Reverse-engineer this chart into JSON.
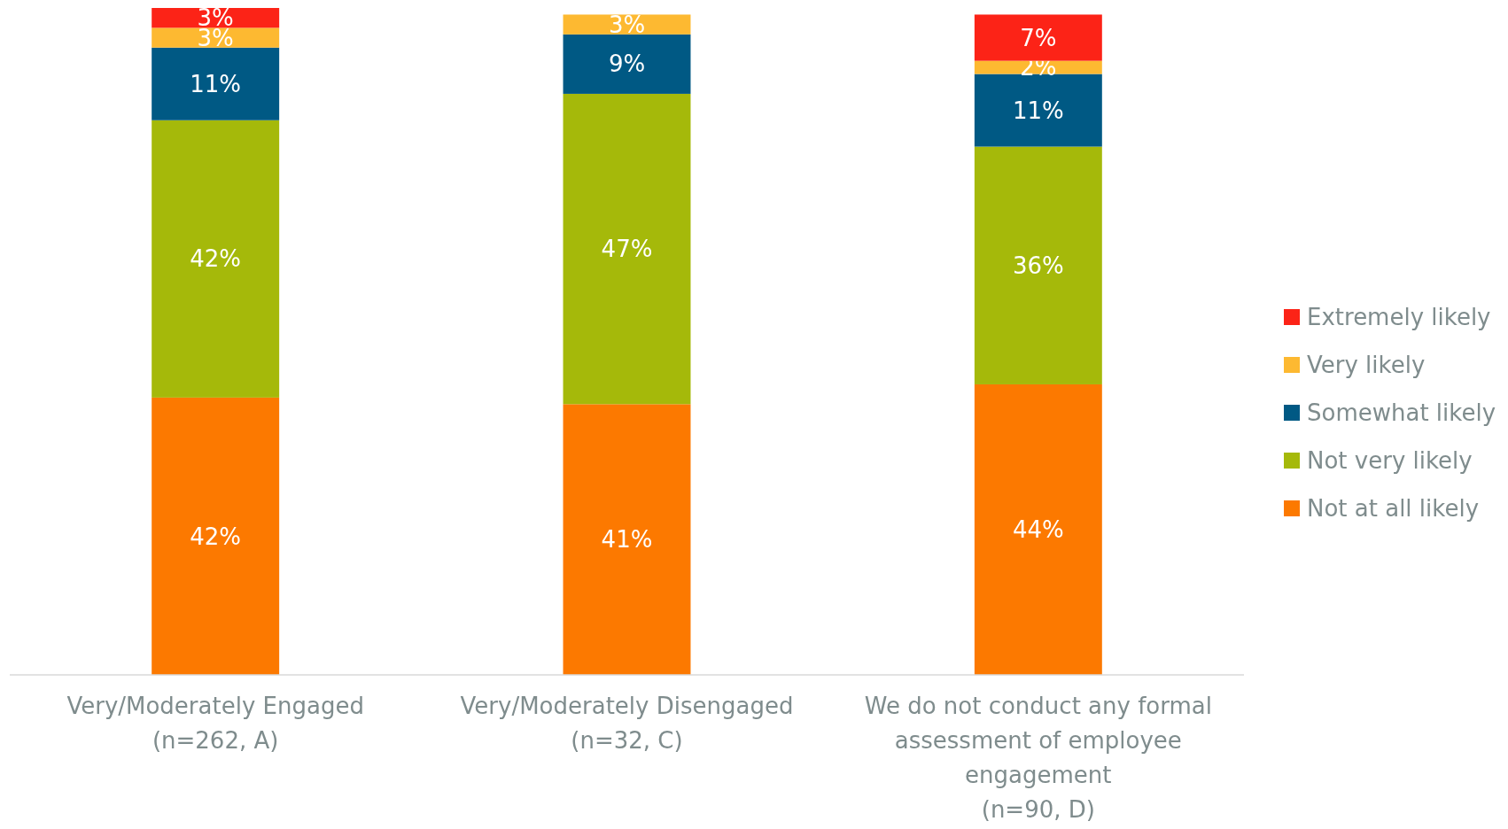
{
  "chart_data": {
    "type": "bar",
    "stacked": true,
    "legend": "right",
    "categories": [
      "Very/Moderately Engaged\n(n=262, A)",
      "Very/Moderately Disengaged\n(n=32, C)",
      "We do not conduct any formal\nassessment of employee\nengagement\n(n=90, D)"
    ],
    "series": [
      {
        "name": "Not at all likely",
        "color": "#fc7900",
        "values": [
          42,
          41,
          44
        ],
        "value_labels": [
          "42%",
          "41%",
          "44%"
        ]
      },
      {
        "name": "Not very likely",
        "color": "#a5b90a",
        "values": [
          42,
          47,
          36
        ],
        "value_labels": [
          "42%",
          "47%",
          "36%"
        ]
      },
      {
        "name": "Somewhat likely",
        "color": "#005984",
        "values": [
          11,
          9,
          11
        ],
        "value_labels": [
          "11%",
          "9%",
          "11%"
        ]
      },
      {
        "name": "Very likely",
        "color": "#fdb931",
        "values": [
          3,
          3,
          2
        ],
        "value_labels": [
          "3%",
          "3%",
          "2%"
        ]
      },
      {
        "name": "Extremely likely",
        "color": "#fc2317",
        "values": [
          3,
          null,
          7
        ],
        "value_labels": [
          "3%",
          null,
          "7%"
        ]
      }
    ]
  }
}
